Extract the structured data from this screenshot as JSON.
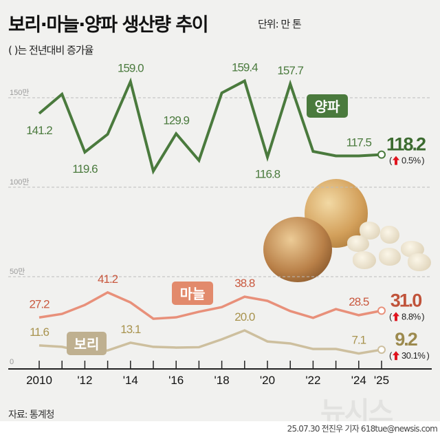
{
  "header": {
    "title": "보리·마늘·양파 생산량 추이",
    "unit": "단위: 만 톤",
    "subtitle": "( )는 전년대비 증가율"
  },
  "footer": {
    "source": "자료: 통계청",
    "credit": "25.07.30 전진우 기자 618tue@newsis.com",
    "logo": "뉴시스"
  },
  "chart_data": {
    "type": "line",
    "title": "보리·마늘·양파 생산량 추이",
    "ylabel": "만 톤",
    "ylim": [
      0,
      170
    ],
    "yticks": [
      {
        "value": 0,
        "label": "0"
      },
      {
        "value": 50,
        "label": "50만"
      },
      {
        "value": 100,
        "label": "100만"
      },
      {
        "value": 150,
        "label": "150만"
      }
    ],
    "x": [
      2010,
      2011,
      2012,
      2013,
      2014,
      2015,
      2016,
      2017,
      2018,
      2019,
      2020,
      2021,
      2022,
      2023,
      2024,
      2025
    ],
    "xtick_labels": [
      {
        "x": 2010,
        "label": "2010"
      },
      {
        "x": 2012,
        "label": "'12"
      },
      {
        "x": 2014,
        "label": "'14"
      },
      {
        "x": 2016,
        "label": "'16"
      },
      {
        "x": 2018,
        "label": "'18"
      },
      {
        "x": 2020,
        "label": "'20"
      },
      {
        "x": 2022,
        "label": "'22"
      },
      {
        "x": 2024,
        "label": "'24"
      },
      {
        "x": 2025,
        "label": "'25"
      }
    ],
    "series": [
      {
        "name": "양파",
        "color": "#4a7a3d",
        "values": [
          141.2,
          152,
          119.6,
          129.6,
          159.0,
          109,
          129.9,
          115,
          152.7,
          159.4,
          116.8,
          157.7,
          120,
          117.5,
          117.5,
          118.2
        ],
        "labels": [
          {
            "x": 2010,
            "text": "141.2",
            "pos": "below"
          },
          {
            "x": 2012,
            "text": "119.6",
            "pos": "below"
          },
          {
            "x": 2014,
            "text": "159.0",
            "pos": "above"
          },
          {
            "x": 2016,
            "text": "129.9",
            "pos": "above"
          },
          {
            "x": 2019,
            "text": "159.4",
            "pos": "above"
          },
          {
            "x": 2020,
            "text": "116.8",
            "pos": "below"
          },
          {
            "x": 2021,
            "text": "157.7",
            "pos": "above"
          },
          {
            "x": 2024,
            "text": "117.5",
            "pos": "above"
          }
        ],
        "final": "118.2",
        "change": "0.5%",
        "final_color": "#3c6b30"
      },
      {
        "name": "마늘",
        "color": "#e8907a",
        "values": [
          27.2,
          29.2,
          34.2,
          41.2,
          35.6,
          26.5,
          27.3,
          30.4,
          33,
          38.8,
          36.5,
          30.8,
          27,
          31.9,
          28.5,
          31.0
        ],
        "labels": [
          {
            "x": 2010,
            "text": "27.2",
            "pos": "above"
          },
          {
            "x": 2013,
            "text": "41.2",
            "pos": "above"
          },
          {
            "x": 2019,
            "text": "38.8",
            "pos": "above"
          },
          {
            "x": 2024,
            "text": "28.5",
            "pos": "above"
          }
        ],
        "final": "31.0",
        "change": "8.8%",
        "final_color": "#c0533a"
      },
      {
        "name": "보리",
        "color": "#cdbf9e",
        "values": [
          11.6,
          10.8,
          8,
          8.8,
          13.1,
          10.8,
          10.4,
          10.6,
          15,
          20.0,
          13.8,
          12.7,
          9.6,
          9.6,
          7.1,
          9.2
        ],
        "labels": [
          {
            "x": 2010,
            "text": "11.6",
            "pos": "above"
          },
          {
            "x": 2014,
            "text": "13.1",
            "pos": "above"
          },
          {
            "x": 2019,
            "text": "20.0",
            "pos": "above"
          },
          {
            "x": 2024,
            "text": "7.1",
            "pos": "above"
          }
        ],
        "final": "9.2",
        "change": "30.1%",
        "final_color": "#9c8a4e"
      }
    ],
    "series_label_colors": {
      "양파": "#4a7a3d",
      "마늘": "#e28a6c",
      "보리": "#bfb090"
    },
    "label_colors": {
      "양파": "#4a7a3d",
      "마늘": "#c9583e",
      "보리": "#a8934e"
    },
    "arrow_color": "#e0141e"
  }
}
